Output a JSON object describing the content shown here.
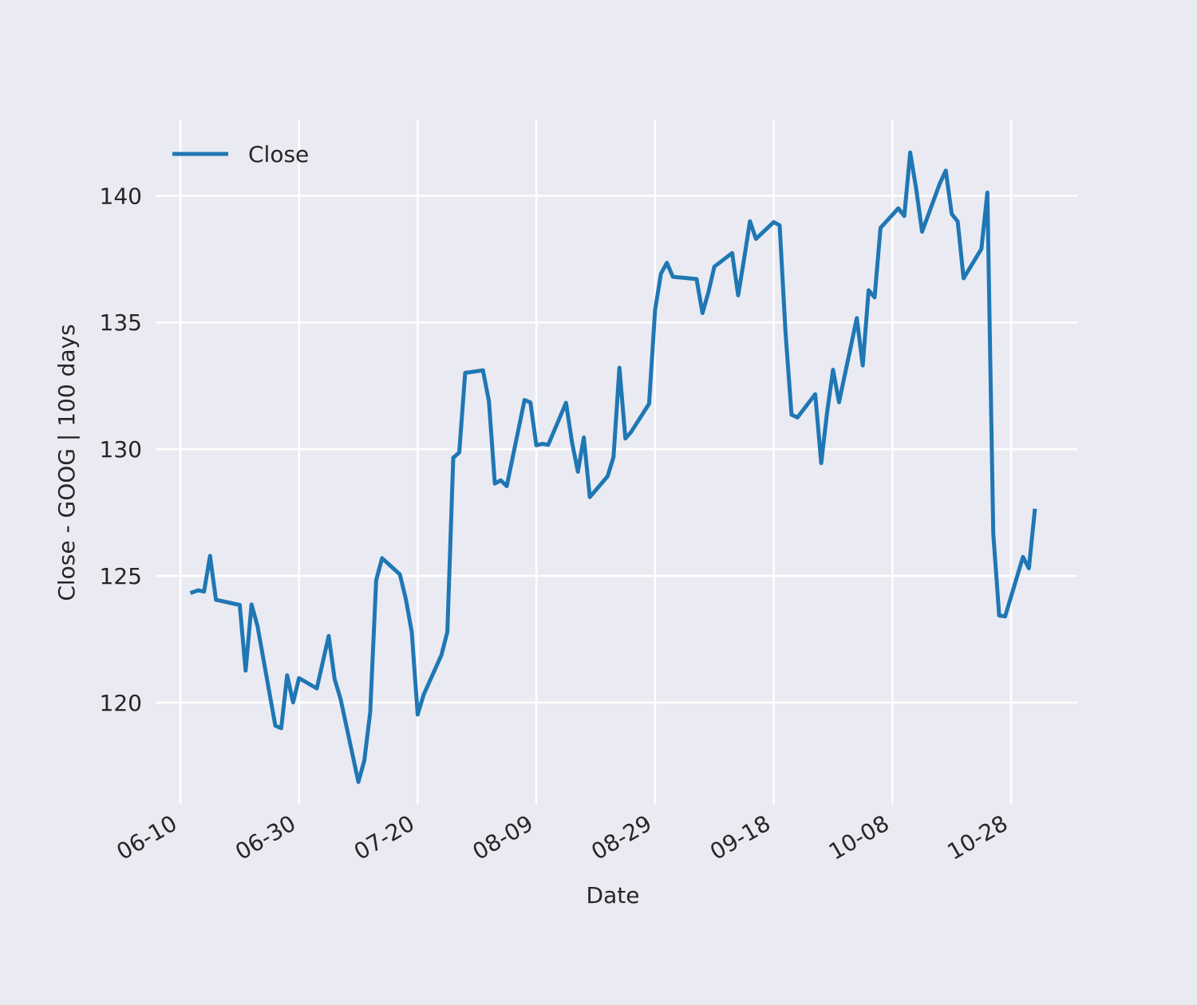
{
  "chart_data": {
    "type": "line",
    "title": "",
    "xlabel": "Date",
    "ylabel": "Close - GOOG | 100 days",
    "background": "#eaeaf2",
    "grid": true,
    "grid_color": "#ffffff",
    "line_color": "#1f77b4",
    "legend": {
      "placement": "top-left",
      "entries": [
        "Close"
      ]
    },
    "ylim": [
      116.0,
      143.0
    ],
    "yticks": [
      120,
      125,
      130,
      135,
      140
    ],
    "xlim": [
      "2023-06-10",
      "2023-11-04"
    ],
    "xticks": [
      {
        "date": "2023-06-10",
        "label": "06-10"
      },
      {
        "date": "2023-06-30",
        "label": "06-30"
      },
      {
        "date": "2023-07-20",
        "label": "07-20"
      },
      {
        "date": "2023-08-09",
        "label": "08-09"
      },
      {
        "date": "2023-08-29",
        "label": "08-29"
      },
      {
        "date": "2023-09-18",
        "label": "09-18"
      },
      {
        "date": "2023-10-08",
        "label": "10-08"
      },
      {
        "date": "2023-10-28",
        "label": "10-28"
      }
    ],
    "series": [
      {
        "name": "Close",
        "points": [
          [
            "2023-06-12",
            124.35
          ],
          [
            "2023-06-13",
            124.43
          ],
          [
            "2023-06-14",
            124.38
          ],
          [
            "2023-06-15",
            125.79
          ],
          [
            "2023-06-16",
            124.06
          ],
          [
            "2023-06-20",
            123.85
          ],
          [
            "2023-06-21",
            121.26
          ],
          [
            "2023-06-22",
            123.87
          ],
          [
            "2023-06-23",
            123.02
          ],
          [
            "2023-06-26",
            119.09
          ],
          [
            "2023-06-27",
            118.99
          ],
          [
            "2023-06-28",
            121.08
          ],
          [
            "2023-06-29",
            120.01
          ],
          [
            "2023-06-30",
            120.97
          ],
          [
            "2023-07-03",
            120.56
          ],
          [
            "2023-07-05",
            122.63
          ],
          [
            "2023-07-06",
            120.93
          ],
          [
            "2023-07-07",
            120.14
          ],
          [
            "2023-07-10",
            116.87
          ],
          [
            "2023-07-11",
            117.71
          ],
          [
            "2023-07-12",
            119.62
          ],
          [
            "2023-07-13",
            124.83
          ],
          [
            "2023-07-14",
            125.7
          ],
          [
            "2023-07-17",
            125.06
          ],
          [
            "2023-07-18",
            124.08
          ],
          [
            "2023-07-19",
            122.78
          ],
          [
            "2023-07-20",
            119.53
          ],
          [
            "2023-07-21",
            120.31
          ],
          [
            "2023-07-24",
            121.88
          ],
          [
            "2023-07-25",
            122.79
          ],
          [
            "2023-07-26",
            129.66
          ],
          [
            "2023-07-27",
            129.87
          ],
          [
            "2023-07-28",
            133.01
          ],
          [
            "2023-07-31",
            133.11
          ],
          [
            "2023-08-01",
            131.89
          ],
          [
            "2023-08-02",
            128.64
          ],
          [
            "2023-08-03",
            128.77
          ],
          [
            "2023-08-04",
            128.54
          ],
          [
            "2023-08-07",
            131.94
          ],
          [
            "2023-08-08",
            131.84
          ],
          [
            "2023-08-09",
            130.15
          ],
          [
            "2023-08-10",
            130.21
          ],
          [
            "2023-08-11",
            130.17
          ],
          [
            "2023-08-14",
            131.83
          ],
          [
            "2023-08-15",
            130.27
          ],
          [
            "2023-08-16",
            129.11
          ],
          [
            "2023-08-17",
            130.46
          ],
          [
            "2023-08-18",
            128.11
          ],
          [
            "2023-08-21",
            128.93
          ],
          [
            "2023-08-22",
            129.69
          ],
          [
            "2023-08-23",
            133.21
          ],
          [
            "2023-08-24",
            130.42
          ],
          [
            "2023-08-25",
            130.69
          ],
          [
            "2023-08-28",
            131.79
          ],
          [
            "2023-08-29",
            135.49
          ],
          [
            "2023-08-30",
            136.93
          ],
          [
            "2023-08-31",
            137.35
          ],
          [
            "2023-09-01",
            136.8
          ],
          [
            "2023-09-05",
            136.71
          ],
          [
            "2023-09-06",
            135.37
          ],
          [
            "2023-09-07",
            136.2
          ],
          [
            "2023-09-08",
            137.2
          ],
          [
            "2023-09-11",
            137.74
          ],
          [
            "2023-09-12",
            136.07
          ],
          [
            "2023-09-13",
            137.5
          ],
          [
            "2023-09-14",
            138.99
          ],
          [
            "2023-09-15",
            138.3
          ],
          [
            "2023-09-18",
            138.96
          ],
          [
            "2023-09-19",
            138.83
          ],
          [
            "2023-09-20",
            134.59
          ],
          [
            "2023-09-21",
            131.36
          ],
          [
            "2023-09-22",
            131.25
          ],
          [
            "2023-09-25",
            132.17
          ],
          [
            "2023-09-26",
            129.45
          ],
          [
            "2023-09-27",
            131.46
          ],
          [
            "2023-09-28",
            133.13
          ],
          [
            "2023-09-29",
            131.85
          ],
          [
            "2023-10-02",
            135.17
          ],
          [
            "2023-10-03",
            133.3
          ],
          [
            "2023-10-04",
            136.27
          ],
          [
            "2023-10-05",
            135.99
          ],
          [
            "2023-10-06",
            138.73
          ],
          [
            "2023-10-09",
            139.5
          ],
          [
            "2023-10-10",
            139.2
          ],
          [
            "2023-10-11",
            141.7
          ],
          [
            "2023-10-12",
            140.29
          ],
          [
            "2023-10-13",
            138.58
          ],
          [
            "2023-10-16",
            140.49
          ],
          [
            "2023-10-17",
            140.99
          ],
          [
            "2023-10-18",
            139.28
          ],
          [
            "2023-10-19",
            138.98
          ],
          [
            "2023-10-20",
            136.74
          ],
          [
            "2023-10-23",
            137.9
          ],
          [
            "2023-10-24",
            140.12
          ],
          [
            "2023-10-25",
            126.67
          ],
          [
            "2023-10-26",
            123.44
          ],
          [
            "2023-10-27",
            123.4
          ],
          [
            "2023-10-30",
            125.75
          ],
          [
            "2023-10-31",
            125.3
          ],
          [
            "2023-11-01",
            127.57
          ]
        ]
      }
    ]
  }
}
